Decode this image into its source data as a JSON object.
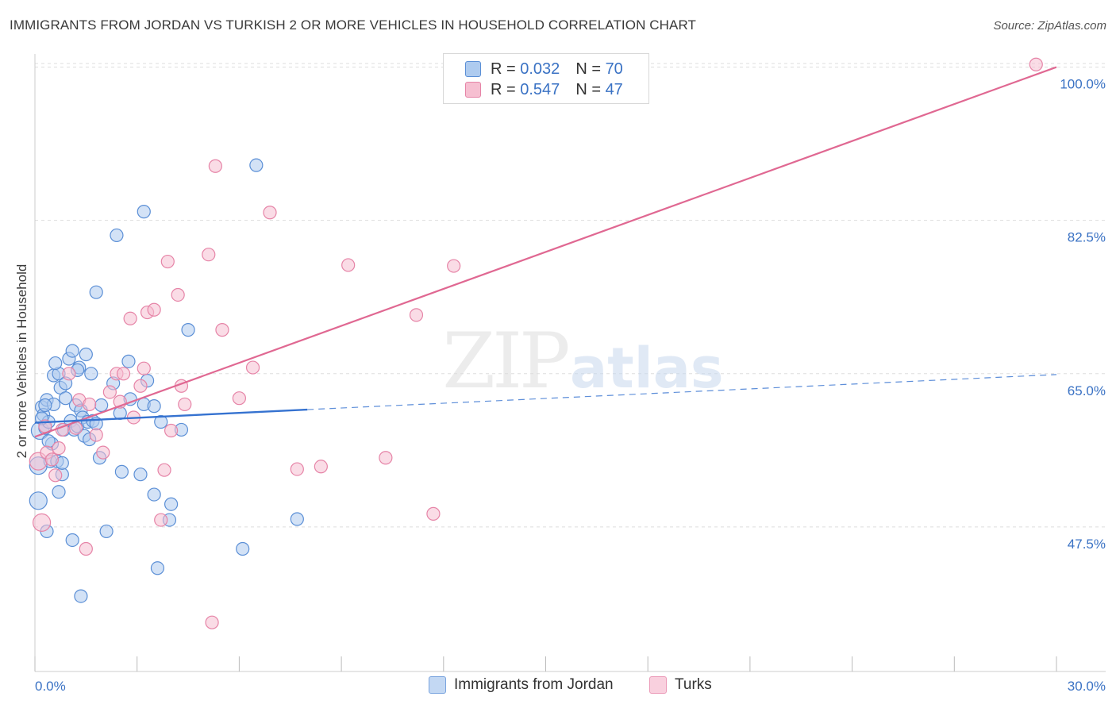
{
  "header": {
    "title": "IMMIGRANTS FROM JORDAN VS TURKISH 2 OR MORE VEHICLES IN HOUSEHOLD CORRELATION CHART",
    "source": "Source: ZipAtlas.com"
  },
  "legend": {
    "series1": {
      "r_label": "R =",
      "r_value": "0.032",
      "n_label": "N =",
      "n_value": "70"
    },
    "series2": {
      "r_label": "R =",
      "r_value": "0.547",
      "n_label": "N =",
      "n_value": "47"
    }
  },
  "watermark": {
    "zip": "ZIP",
    "atlas": "atlas"
  },
  "colors": {
    "blue_fill": "#aecbef",
    "blue_stroke": "#5b8fd6",
    "blue_line": "#3572d0",
    "pink_fill": "#f6bfd1",
    "pink_stroke": "#e684a7",
    "pink_line": "#e06892",
    "tick_label": "#3a72c4",
    "grid": "#dddddd"
  },
  "chart_data": {
    "type": "scatter",
    "title": "IMMIGRANTS FROM JORDAN VS TURKISH 2 OR MORE VEHICLES IN HOUSEHOLD CORRELATION CHART",
    "xlabel": "",
    "ylabel": "2 or more Vehicles in Household",
    "xlim": [
      0,
      30
    ],
    "ylim": [
      31,
      101.5
    ],
    "x_tick_labels": {
      "left": "0.0%",
      "right": "30.0%"
    },
    "y_ticks": [
      {
        "value": 47.5,
        "label": "47.5%"
      },
      {
        "value": 65.0,
        "label": "65.0%"
      },
      {
        "value": 82.5,
        "label": "82.5%"
      },
      {
        "value": 100.0,
        "label": "100.0%"
      }
    ],
    "series": [
      {
        "name": "Immigrants from Jordan",
        "color": "blue",
        "r": 0.032,
        "n": 70,
        "trend": {
          "solid": [
            [
              0,
              59.4
            ],
            [
              8,
              60.9
            ]
          ],
          "dashed": [
            [
              8,
              60.9
            ],
            [
              30,
              64.9
            ]
          ]
        },
        "points": [
          [
            0.1,
            50.5
          ],
          [
            0.1,
            54.5
          ],
          [
            0.15,
            58.5
          ],
          [
            0.2,
            61.2
          ],
          [
            0.25,
            60.3
          ],
          [
            0.3,
            58.8
          ],
          [
            0.35,
            62.0
          ],
          [
            0.4,
            59.5
          ],
          [
            0.45,
            55.0
          ],
          [
            0.5,
            57.0
          ],
          [
            0.55,
            61.5
          ],
          [
            0.55,
            64.8
          ],
          [
            0.65,
            55.0
          ],
          [
            0.7,
            51.5
          ],
          [
            0.7,
            65.0
          ],
          [
            0.75,
            63.4
          ],
          [
            0.8,
            53.5
          ],
          [
            0.8,
            54.8
          ],
          [
            0.85,
            58.6
          ],
          [
            0.9,
            62.2
          ],
          [
            0.9,
            63.9
          ],
          [
            1.0,
            66.7
          ],
          [
            1.05,
            59.6
          ],
          [
            1.1,
            67.6
          ],
          [
            1.15,
            58.6
          ],
          [
            1.2,
            61.4
          ],
          [
            1.25,
            59.0
          ],
          [
            1.3,
            65.7
          ],
          [
            1.35,
            60.8
          ],
          [
            1.4,
            60.0
          ],
          [
            1.45,
            57.9
          ],
          [
            1.5,
            67.2
          ],
          [
            1.55,
            59.5
          ],
          [
            1.6,
            57.5
          ],
          [
            1.65,
            65.0
          ],
          [
            1.7,
            59.6
          ],
          [
            1.8,
            74.3
          ],
          [
            1.95,
            61.4
          ],
          [
            1.9,
            55.4
          ],
          [
            2.1,
            47.0
          ],
          [
            2.4,
            80.8
          ],
          [
            2.5,
            60.5
          ],
          [
            2.55,
            53.8
          ],
          [
            2.75,
            66.4
          ],
          [
            2.8,
            62.1
          ],
          [
            3.1,
            53.5
          ],
          [
            3.2,
            61.5
          ],
          [
            3.2,
            83.5
          ],
          [
            3.3,
            64.2
          ],
          [
            3.5,
            61.3
          ],
          [
            3.5,
            51.2
          ],
          [
            3.6,
            42.8
          ],
          [
            3.7,
            59.5
          ],
          [
            3.95,
            48.3
          ],
          [
            4.0,
            50.1
          ],
          [
            4.3,
            58.6
          ],
          [
            4.5,
            70.0
          ],
          [
            6.1,
            45.0
          ],
          [
            6.5,
            88.8
          ],
          [
            7.7,
            48.4
          ],
          [
            0.35,
            47.0
          ],
          [
            1.1,
            46.0
          ],
          [
            1.35,
            39.6
          ],
          [
            0.3,
            61.4
          ],
          [
            0.4,
            57.3
          ],
          [
            1.25,
            65.4
          ],
          [
            1.8,
            59.3
          ],
          [
            2.3,
            63.9
          ],
          [
            0.6,
            66.2
          ],
          [
            0.2,
            59.9
          ]
        ]
      },
      {
        "name": "Turks",
        "color": "pink",
        "r": 0.547,
        "n": 47,
        "trend": [
          [
            0,
            57.8
          ],
          [
            30,
            100.0
          ]
        ],
        "points": [
          [
            0.1,
            55.0
          ],
          [
            0.2,
            48.0
          ],
          [
            0.35,
            56.0
          ],
          [
            0.5,
            55.2
          ],
          [
            0.6,
            53.4
          ],
          [
            0.7,
            56.5
          ],
          [
            0.8,
            58.6
          ],
          [
            1.0,
            65.0
          ],
          [
            1.2,
            58.8
          ],
          [
            1.3,
            62.0
          ],
          [
            1.5,
            45.0
          ],
          [
            1.6,
            61.5
          ],
          [
            1.8,
            58.0
          ],
          [
            2.0,
            56.0
          ],
          [
            2.2,
            62.9
          ],
          [
            2.4,
            65.0
          ],
          [
            2.5,
            61.8
          ],
          [
            2.6,
            65.0
          ],
          [
            2.8,
            71.3
          ],
          [
            2.9,
            60.0
          ],
          [
            3.1,
            63.6
          ],
          [
            3.2,
            65.6
          ],
          [
            3.3,
            72.0
          ],
          [
            3.5,
            72.3
          ],
          [
            3.7,
            48.3
          ],
          [
            3.8,
            54.0
          ],
          [
            3.9,
            77.8
          ],
          [
            4.0,
            58.5
          ],
          [
            4.2,
            74.0
          ],
          [
            4.3,
            63.6
          ],
          [
            4.4,
            61.5
          ],
          [
            5.1,
            78.6
          ],
          [
            5.2,
            36.6
          ],
          [
            5.3,
            88.7
          ],
          [
            5.5,
            70.0
          ],
          [
            6.0,
            62.2
          ],
          [
            6.4,
            65.7
          ],
          [
            6.9,
            83.4
          ],
          [
            7.7,
            54.1
          ],
          [
            8.4,
            54.4
          ],
          [
            9.2,
            77.4
          ],
          [
            10.3,
            55.4
          ],
          [
            11.2,
            71.7
          ],
          [
            11.7,
            49.0
          ],
          [
            12.3,
            77.3
          ],
          [
            0.3,
            59.0
          ],
          [
            29.4,
            100.3
          ]
        ]
      }
    ]
  },
  "bottom_legend": {
    "item1": "Immigrants from Jordan",
    "item2": "Turks"
  }
}
